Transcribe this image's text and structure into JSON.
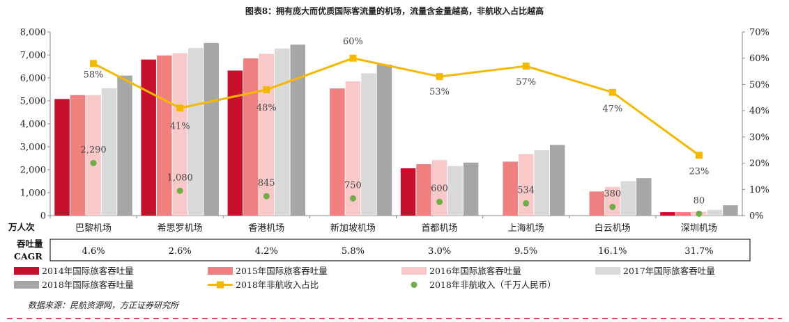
{
  "chart_data": {
    "type": "bar",
    "title": "图表8：拥有庞大而优质国际客流量的机场，流量含金量越高，非航收入占比越高",
    "categories": [
      "巴黎机场",
      "希思罗机场",
      "香港机场",
      "新加坡机场",
      "首都机场",
      "上海机场",
      "白云机场",
      "深圳机场"
    ],
    "y_axis": {
      "min": 0,
      "max": 8000,
      "ticks": [
        "0",
        "1,000",
        "2,000",
        "3,000",
        "4,000",
        "5,000",
        "6,000",
        "7,000",
        "8,000"
      ]
    },
    "y2_axis": {
      "min": 0,
      "max": 70,
      "ticks": [
        "0%",
        "10%",
        "20%",
        "30%",
        "40%",
        "50%",
        "60%",
        "70%"
      ]
    },
    "series": [
      {
        "name": "2014年国际旅客吞吐量",
        "color": "#c8102e",
        "values": [
          5080,
          6800,
          6320,
          null,
          2060,
          null,
          null,
          150
        ]
      },
      {
        "name": "2015年国际旅客吞吐量",
        "color": "#f08080",
        "values": [
          5250,
          6980,
          6850,
          5540,
          2240,
          2350,
          1050,
          150
        ]
      },
      {
        "name": "2016年国际旅客吞吐量",
        "color": "#f9c9c9",
        "values": [
          5250,
          7080,
          7050,
          5850,
          2420,
          2680,
          1250,
          170
        ]
      },
      {
        "name": "2017年国际旅客吞吐量",
        "color": "#d9d9d9",
        "values": [
          5550,
          7300,
          7280,
          6200,
          2160,
          2850,
          1500,
          250
        ]
      },
      {
        "name": "2018年国际旅客吞吐量",
        "color": "#a6a6a6",
        "values": [
          6100,
          7520,
          7450,
          6580,
          2310,
          3080,
          1630,
          450
        ]
      }
    ],
    "line": {
      "name": "2018年非航收入占比",
      "color": "#f5b800",
      "values": [
        58,
        41,
        48,
        60,
        53,
        57,
        47,
        23
      ],
      "labels": [
        "58%",
        "41%",
        "48%",
        "60%",
        "53%",
        "57%",
        "47%",
        "23%"
      ]
    },
    "points": {
      "name": "2018年非航收入（千万人民币）",
      "color": "#70ad47",
      "values": [
        2290,
        1080,
        845,
        750,
        600,
        534,
        380,
        80
      ],
      "labels": [
        "2,290",
        "1,080",
        "845",
        "750",
        "600",
        "534",
        "380",
        "80"
      ]
    },
    "ylabel": "万人次",
    "cagr_label_lines": [
      "吞吐量",
      "CAGR"
    ],
    "cagr": [
      "4.6%",
      "2.6%",
      "4.2%",
      "5.8%",
      "3.0%",
      "9.5%",
      "16.1%",
      "31.7%"
    ],
    "source": "数据来源：民航资源网，方正证券研究所",
    "legend_rows": [
      [
        "2014年国际旅客吞吐量",
        "2015年国际旅客吞吐量",
        "2016年国际旅客吞吐量",
        "2017年国际旅客吞吐量"
      ],
      [
        "2018年国际旅客吞吐量",
        "2018年非航收入占比",
        "2018年非航收入（千万人民币）"
      ]
    ],
    "grid": false,
    "legend_position": "bottom"
  }
}
